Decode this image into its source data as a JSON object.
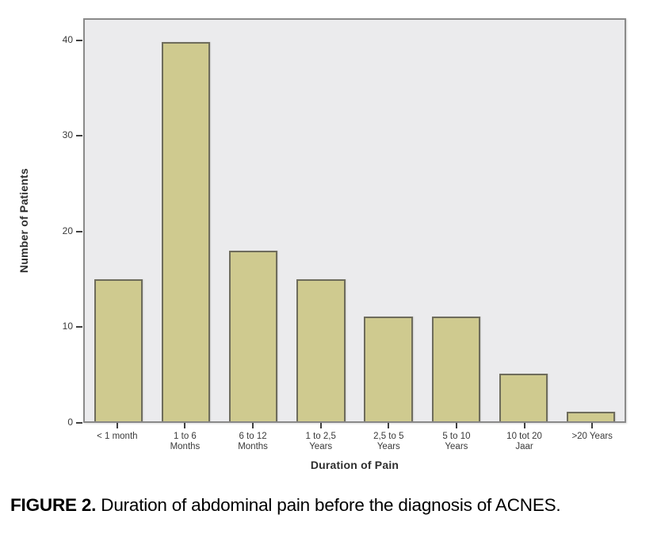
{
  "figure": {
    "caption_label": "FIGURE 2.",
    "caption_text": " Duration of abdominal pain before the diagnosis of ACNES."
  },
  "chart_data": {
    "type": "bar",
    "title": "",
    "xlabel": "Duration of Pain",
    "ylabel": "Number of Patients",
    "categories": [
      "< 1 month",
      "1 to 6\nMonths",
      "6 to 12\nMonths",
      "1 to 2,5\nYears",
      "2,5 to 5\nYears",
      "5 to 10\nYears",
      "10 tot 20\nJaar",
      ">20 Years"
    ],
    "values": [
      15,
      40,
      18,
      15,
      11,
      11,
      5,
      1
    ],
    "yticks": [
      0,
      10,
      20,
      30,
      40
    ],
    "ylim": [
      0,
      42.3
    ],
    "grid": false,
    "legend": "none",
    "colors": {
      "bar_fill": "#cfca8f",
      "bar_border": "#6e6c5c",
      "plot_bg": "#ebebed",
      "frame_border": "#8a8a8a",
      "tick_text": "#3a3a3a",
      "axis_title_text": "#2e2e2e"
    }
  }
}
